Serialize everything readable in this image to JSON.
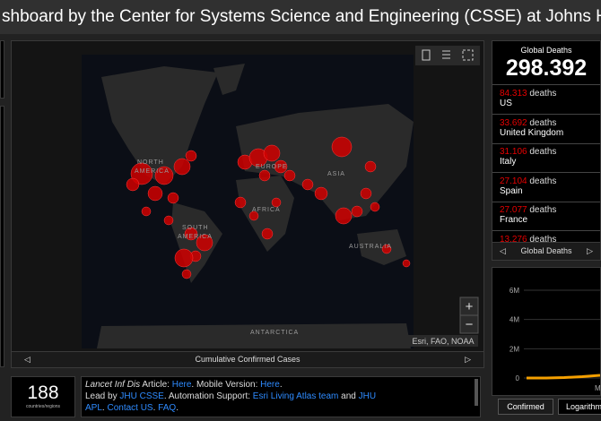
{
  "header": {
    "title": "shboard by the Center for Systems Science and Engineering (CSSE) at Johns Hopkins U"
  },
  "map": {
    "labels": [
      "NORTH",
      "AMERICA",
      "EUROPE",
      "ASIA",
      "AFRICA",
      "SOUTH",
      "AMERICA",
      "AUSTRALIA",
      "ANTARCTICA"
    ],
    "attribution": "Esri, FAO, NOAA",
    "zoom_in": "+",
    "zoom_out": "−",
    "tab": "Cumulative Confirmed Cases"
  },
  "deaths": {
    "title": "Global Deaths",
    "total": "298.392",
    "unit": "deaths",
    "rows": [
      {
        "value": "84.313",
        "country": "US"
      },
      {
        "value": "33.692",
        "country": "United Kingdom"
      },
      {
        "value": "31.106",
        "country": "Italy"
      },
      {
        "value": "27.104",
        "country": "Spain"
      },
      {
        "value": "27.077",
        "country": "France"
      },
      {
        "value": "13.276",
        "country": ""
      }
    ],
    "tab": "Global Deaths"
  },
  "counter": {
    "value": "188",
    "label": "countries/regions"
  },
  "info": {
    "parts": [
      "Lancet Inf Dis",
      " Article: ",
      "Here",
      ". Mobile Version: ",
      "Here",
      ".",
      "Lead by ",
      "JHU CSSE",
      ". Automation Support: ",
      "Esri Living Atlas team",
      " and ",
      "JHU APL",
      ". ",
      "Contact US",
      ". ",
      "FAQ",
      "."
    ]
  },
  "chart": {
    "ylim": [
      0,
      6000000
    ],
    "yticks": [
      0,
      {
        "value": 2000000,
        "label": "2M"
      },
      {
        "value": 4000000,
        "label": "4M"
      },
      {
        "value": 6000000,
        "label": "6M"
      }
    ],
    "x_label": "M",
    "tabs": [
      "Confirmed",
      "Logarithmi"
    ]
  }
}
